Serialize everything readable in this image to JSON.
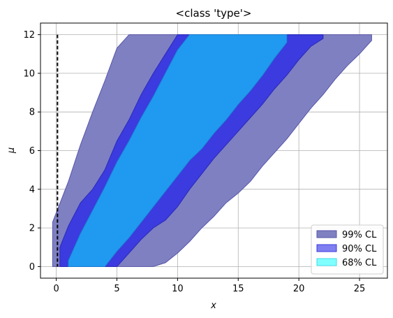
{
  "chart_data": {
    "type": "area",
    "title": "<class 'type'>",
    "xlabel": "x",
    "ylabel": "μ",
    "xlim": [
      -1.3,
      27.3
    ],
    "ylim": [
      -0.6,
      12.6
    ],
    "xticks": [
      0,
      5,
      10,
      15,
      20,
      25
    ],
    "yticks": [
      0,
      2,
      4,
      6,
      8,
      10,
      12
    ],
    "grid": true,
    "legend_position": "bottom-right",
    "x_column": 0.1,
    "bands": [
      {
        "name": "99% CL",
        "color": "#7f80c2",
        "edge": "#5555a8",
        "upper": [
          [
            -0.3,
            2.3
          ],
          [
            1.0,
            4.4
          ],
          [
            2.0,
            6.3
          ],
          [
            3.0,
            8.0
          ],
          [
            4.0,
            9.6
          ],
          [
            5.0,
            11.3
          ],
          [
            6.0,
            12.0
          ],
          [
            26.0,
            12.0
          ]
        ],
        "lower": [
          [
            26.0,
            11.7
          ],
          [
            25.0,
            11.0
          ],
          [
            24.0,
            10.4
          ],
          [
            23.0,
            9.7
          ],
          [
            22.0,
            8.9
          ],
          [
            21.0,
            8.2
          ],
          [
            20.0,
            7.4
          ],
          [
            19.0,
            6.6
          ],
          [
            18.0,
            5.9
          ],
          [
            17.0,
            5.2
          ],
          [
            16.0,
            4.4
          ],
          [
            15.0,
            3.8
          ],
          [
            14.0,
            3.3
          ],
          [
            13.0,
            2.6
          ],
          [
            12.0,
            2.0
          ],
          [
            11.0,
            1.3
          ],
          [
            10.0,
            0.7
          ],
          [
            9.0,
            0.2
          ],
          [
            8.0,
            0.0
          ],
          [
            -0.3,
            0.0
          ]
        ]
      },
      {
        "name": "90% CL",
        "color": "#3b3bdf",
        "edge": "#2a2ab8",
        "upper": [
          [
            0.3,
            1.0
          ],
          [
            1.0,
            2.1
          ],
          [
            2.0,
            3.3
          ],
          [
            3.0,
            4.0
          ],
          [
            4.0,
            5.0
          ],
          [
            5.0,
            6.5
          ],
          [
            6.0,
            7.6
          ],
          [
            7.0,
            8.9
          ],
          [
            8.0,
            10.0
          ],
          [
            9.0,
            11.0
          ],
          [
            10.0,
            12.0
          ],
          [
            22.0,
            12.0
          ]
        ],
        "lower": [
          [
            22.0,
            11.8
          ],
          [
            21.0,
            11.4
          ],
          [
            20.0,
            10.7
          ],
          [
            19.0,
            9.9
          ],
          [
            18.0,
            9.2
          ],
          [
            17.0,
            8.4
          ],
          [
            16.0,
            7.7
          ],
          [
            15.0,
            7.0
          ],
          [
            14.0,
            6.3
          ],
          [
            13.0,
            5.6
          ],
          [
            12.0,
            4.8
          ],
          [
            11.0,
            4.0
          ],
          [
            10.0,
            3.1
          ],
          [
            9.0,
            2.4
          ],
          [
            8.0,
            2.0
          ],
          [
            7.0,
            1.4
          ],
          [
            6.0,
            0.7
          ],
          [
            5.0,
            0.0
          ],
          [
            0.3,
            0.0
          ]
        ]
      },
      {
        "name": "68% CL",
        "color": "#209af0",
        "edge": "#1a86d4",
        "upper": [
          [
            1.0,
            0.3
          ],
          [
            2.0,
            1.7
          ],
          [
            3.0,
            2.9
          ],
          [
            4.0,
            4.1
          ],
          [
            5.0,
            5.4
          ],
          [
            6.0,
            6.5
          ],
          [
            7.0,
            7.7
          ],
          [
            8.0,
            8.8
          ],
          [
            9.0,
            10.0
          ],
          [
            10.0,
            11.2
          ],
          [
            11.0,
            12.0
          ],
          [
            19.0,
            12.0
          ]
        ],
        "lower": [
          [
            19.0,
            11.6
          ],
          [
            18.0,
            10.8
          ],
          [
            17.0,
            9.9
          ],
          [
            16.0,
            9.1
          ],
          [
            15.0,
            8.4
          ],
          [
            14.0,
            7.6
          ],
          [
            13.0,
            6.9
          ],
          [
            12.0,
            6.1
          ],
          [
            11.0,
            5.5
          ],
          [
            10.0,
            4.7
          ],
          [
            9.0,
            3.9
          ],
          [
            8.0,
            3.1
          ],
          [
            7.0,
            2.3
          ],
          [
            6.0,
            1.5
          ],
          [
            5.0,
            0.8
          ],
          [
            4.0,
            0.0
          ],
          [
            1.0,
            0.0
          ]
        ]
      }
    ],
    "legend": [
      {
        "label": "99% CL",
        "color": "#7f80c2",
        "edge": "#5555a8"
      },
      {
        "label": "90% CL",
        "color": "#7f7ff2",
        "edge": "#3b3bdf"
      },
      {
        "label": "68% CL",
        "color": "#80ffff",
        "edge": "#40d8e8"
      }
    ]
  }
}
